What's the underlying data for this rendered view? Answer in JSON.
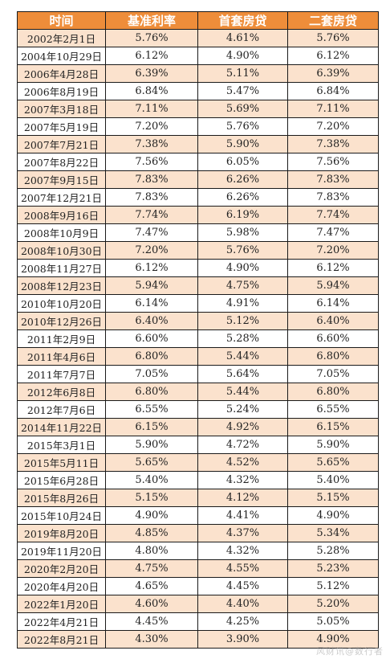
{
  "colors": {
    "header_bg": "#ee8d3a",
    "header_text": "#ffffff",
    "shade_row": "#fbe2cd",
    "border": "#1a1a1a"
  },
  "table": {
    "headers": [
      "时间",
      "基准利率",
      "首套房贷",
      "二套房贷"
    ],
    "rows": [
      [
        "2002年2月1日",
        "5.76%",
        "4.61%",
        "5.76%"
      ],
      [
        "2004年10月29日",
        "6.12%",
        "4.90%",
        "6.12%"
      ],
      [
        "2006年4月28日",
        "6.39%",
        "5.11%",
        "6.39%"
      ],
      [
        "2006年8月19日",
        "6.84%",
        "5.47%",
        "6.84%"
      ],
      [
        "2007年3月18日",
        "7.11%",
        "5.69%",
        "7.11%"
      ],
      [
        "2007年5月19日",
        "7.20%",
        "5.76%",
        "7.20%"
      ],
      [
        "2007年7月21日",
        "7.38%",
        "5.90%",
        "7.38%"
      ],
      [
        "2007年8月22日",
        "7.56%",
        "6.05%",
        "7.56%"
      ],
      [
        "2007年9月15日",
        "7.83%",
        "6.26%",
        "7.83%"
      ],
      [
        "2007年12月21日",
        "7.83%",
        "6.26%",
        "7.83%"
      ],
      [
        "2008年9月16日",
        "7.74%",
        "6.19%",
        "7.74%"
      ],
      [
        "2008年10月9日",
        "7.47%",
        "5.98%",
        "7.47%"
      ],
      [
        "2008年10月30日",
        "7.20%",
        "5.76%",
        "7.20%"
      ],
      [
        "2008年11月27日",
        "6.12%",
        "4.90%",
        "6.12%"
      ],
      [
        "2008年12月23日",
        "5.94%",
        "4.75%",
        "5.94%"
      ],
      [
        "2010年10月20日",
        "6.14%",
        "4.91%",
        "6.14%"
      ],
      [
        "2010年12月26日",
        "6.40%",
        "5.12%",
        "6.40%"
      ],
      [
        "2011年2月9日",
        "6.60%",
        "5.28%",
        "6.60%"
      ],
      [
        "2011年4月6日",
        "6.80%",
        "5.44%",
        "6.80%"
      ],
      [
        "2011年7月7日",
        "7.05%",
        "5.64%",
        "7.05%"
      ],
      [
        "2012年6月8日",
        "6.80%",
        "5.44%",
        "6.80%"
      ],
      [
        "2012年7月6日",
        "6.55%",
        "5.24%",
        "6.55%"
      ],
      [
        "2014年11月22日",
        "6.15%",
        "4.92%",
        "6.15%"
      ],
      [
        "2015年3月1日",
        "5.90%",
        "4.72%",
        "5.90%"
      ],
      [
        "2015年5月11日",
        "5.65%",
        "4.52%",
        "5.65%"
      ],
      [
        "2015年6月28日",
        "5.40%",
        "4.32%",
        "5.40%"
      ],
      [
        "2015年8月26日",
        "5.15%",
        "4.12%",
        "5.15%"
      ],
      [
        "2015年10月24日",
        "4.90%",
        "4.41%",
        "4.90%"
      ],
      [
        "2019年8月20日",
        "4.85%",
        "4.37%",
        "5.34%"
      ],
      [
        "2019年11月20日",
        "4.80%",
        "4.32%",
        "5.28%"
      ],
      [
        "2020年2月20日",
        "4.75%",
        "4.55%",
        "5.23%"
      ],
      [
        "2020年4月20日",
        "4.65%",
        "4.45%",
        "5.12%"
      ],
      [
        "2022年1月20日",
        "4.60%",
        "4.40%",
        "5.20%"
      ],
      [
        "2022年4月21日",
        "4.45%",
        "4.25%",
        "5.05%"
      ],
      [
        "2022年8月21日",
        "4.30%",
        "3.90%",
        "4.90%"
      ]
    ]
  },
  "watermark": "风财讯@数行者"
}
